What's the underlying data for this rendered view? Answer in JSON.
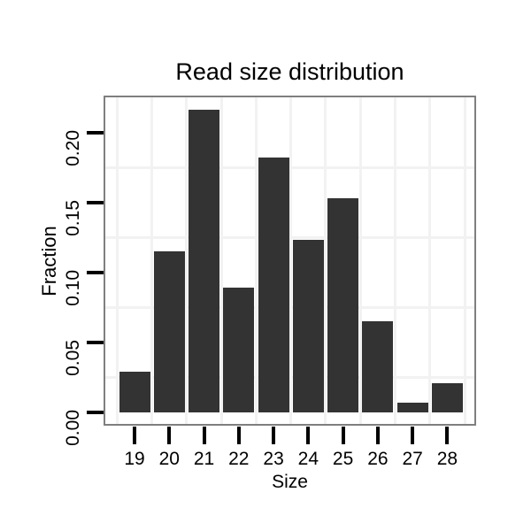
{
  "chart_data": {
    "type": "bar",
    "title": "Read size distribution",
    "xlabel": "Size",
    "ylabel": "Fraction",
    "categories": [
      "19",
      "20",
      "21",
      "22",
      "23",
      "24",
      "25",
      "26",
      "27",
      "28"
    ],
    "values": [
      0.029,
      0.115,
      0.216,
      0.089,
      0.182,
      0.123,
      0.153,
      0.065,
      0.007,
      0.021
    ],
    "y_ticks": [
      {
        "value": 0.0,
        "label": "0.00"
      },
      {
        "value": 0.05,
        "label": "0.05"
      },
      {
        "value": 0.1,
        "label": "0.10"
      },
      {
        "value": 0.15,
        "label": "0.15"
      },
      {
        "value": 0.2,
        "label": "0.20"
      }
    ],
    "y_minor_gridlines": [
      0.025,
      0.075,
      0.125,
      0.175
    ],
    "ylim": [
      -0.009,
      0.226
    ],
    "grid": "minor-only",
    "legend": "none",
    "colors": {
      "bar": "#333333",
      "panel_border": "#7f7f7f",
      "gridline": "#f2f2f2",
      "tick": "#000000",
      "text": "#000000",
      "background": "#ffffff"
    }
  }
}
